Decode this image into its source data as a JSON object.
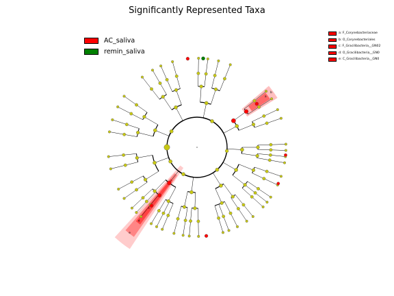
{
  "title": "Significantly Represented Taxa",
  "colors": {
    "enriched_ac_saliva": "#ff0000",
    "enriched_remin_saliva": "#008000",
    "non_significant": "#c8c814",
    "highlight": "#ff0000"
  },
  "groups": [
    {
      "label": "AC_saliva",
      "color": "#ff0000"
    },
    {
      "label": "remin_saliva",
      "color": "#008000"
    }
  ],
  "taxa_legend": [
    {
      "label": "a: F_Corynebacteriaceae"
    },
    {
      "label": "b: O_Corynebacteriales"
    },
    {
      "label": "c: F_Gracilibacteria__GN02"
    },
    {
      "label": "d: O_Gracilibacteria__GN0"
    },
    {
      "label": "e: C_Gracilibacteria__GN0"
    }
  ],
  "highlight_letters": [
    "a",
    "b",
    "c",
    "d",
    "e"
  ]
}
